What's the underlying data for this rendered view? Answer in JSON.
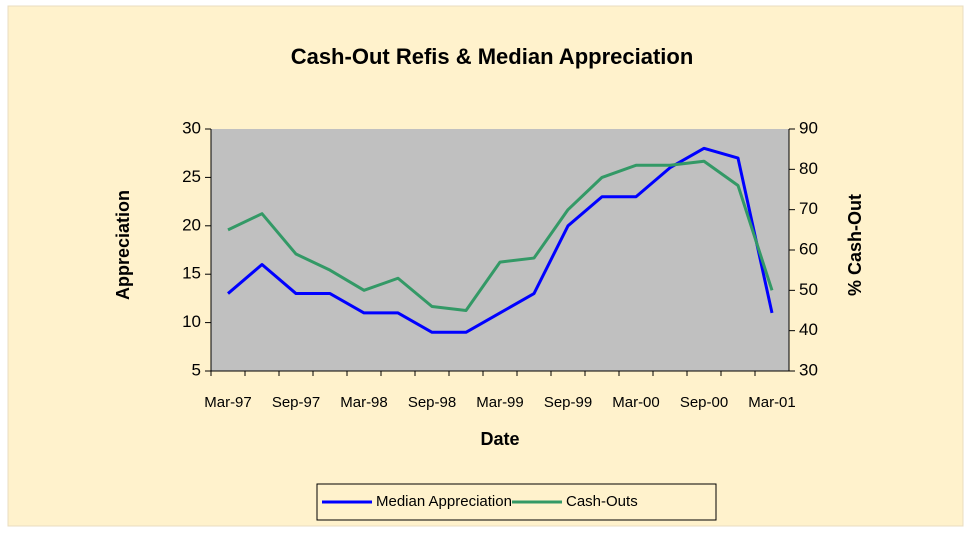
{
  "chart_data": {
    "type": "line",
    "title": "Cash-Out Refis & Median Appreciation",
    "xlabel": "Date",
    "ylabel": "Appreciation",
    "y2label": "% Cash-Out",
    "categories": [
      "Mar-97",
      null,
      "Sep-97",
      null,
      "Mar-98",
      null,
      "Sep-98",
      null,
      "Mar-99",
      null,
      "Sep-99",
      null,
      "Mar-00",
      null,
      "Sep-00",
      null,
      "Mar-01"
    ],
    "series": [
      {
        "name": "Median Appreciation",
        "color": "#0000ff",
        "values": [
          13,
          16,
          13,
          13,
          11,
          11,
          9,
          9,
          11,
          13,
          20,
          23,
          23,
          26,
          28,
          27,
          11
        ]
      },
      {
        "name": "Cash-Outs",
        "color": "#339966",
        "axis": "y2",
        "values": [
          65,
          69,
          59,
          55,
          50,
          53,
          46,
          45,
          57,
          58,
          70,
          78,
          81,
          81,
          82,
          76,
          50
        ]
      }
    ],
    "ylim": [
      5,
      30
    ],
    "yticks": [
      5,
      10,
      15,
      20,
      25,
      30
    ],
    "y2lim": [
      30,
      90
    ],
    "y2ticks": [
      30,
      40,
      50,
      60,
      70,
      80,
      90
    ],
    "legend": "bottom"
  }
}
